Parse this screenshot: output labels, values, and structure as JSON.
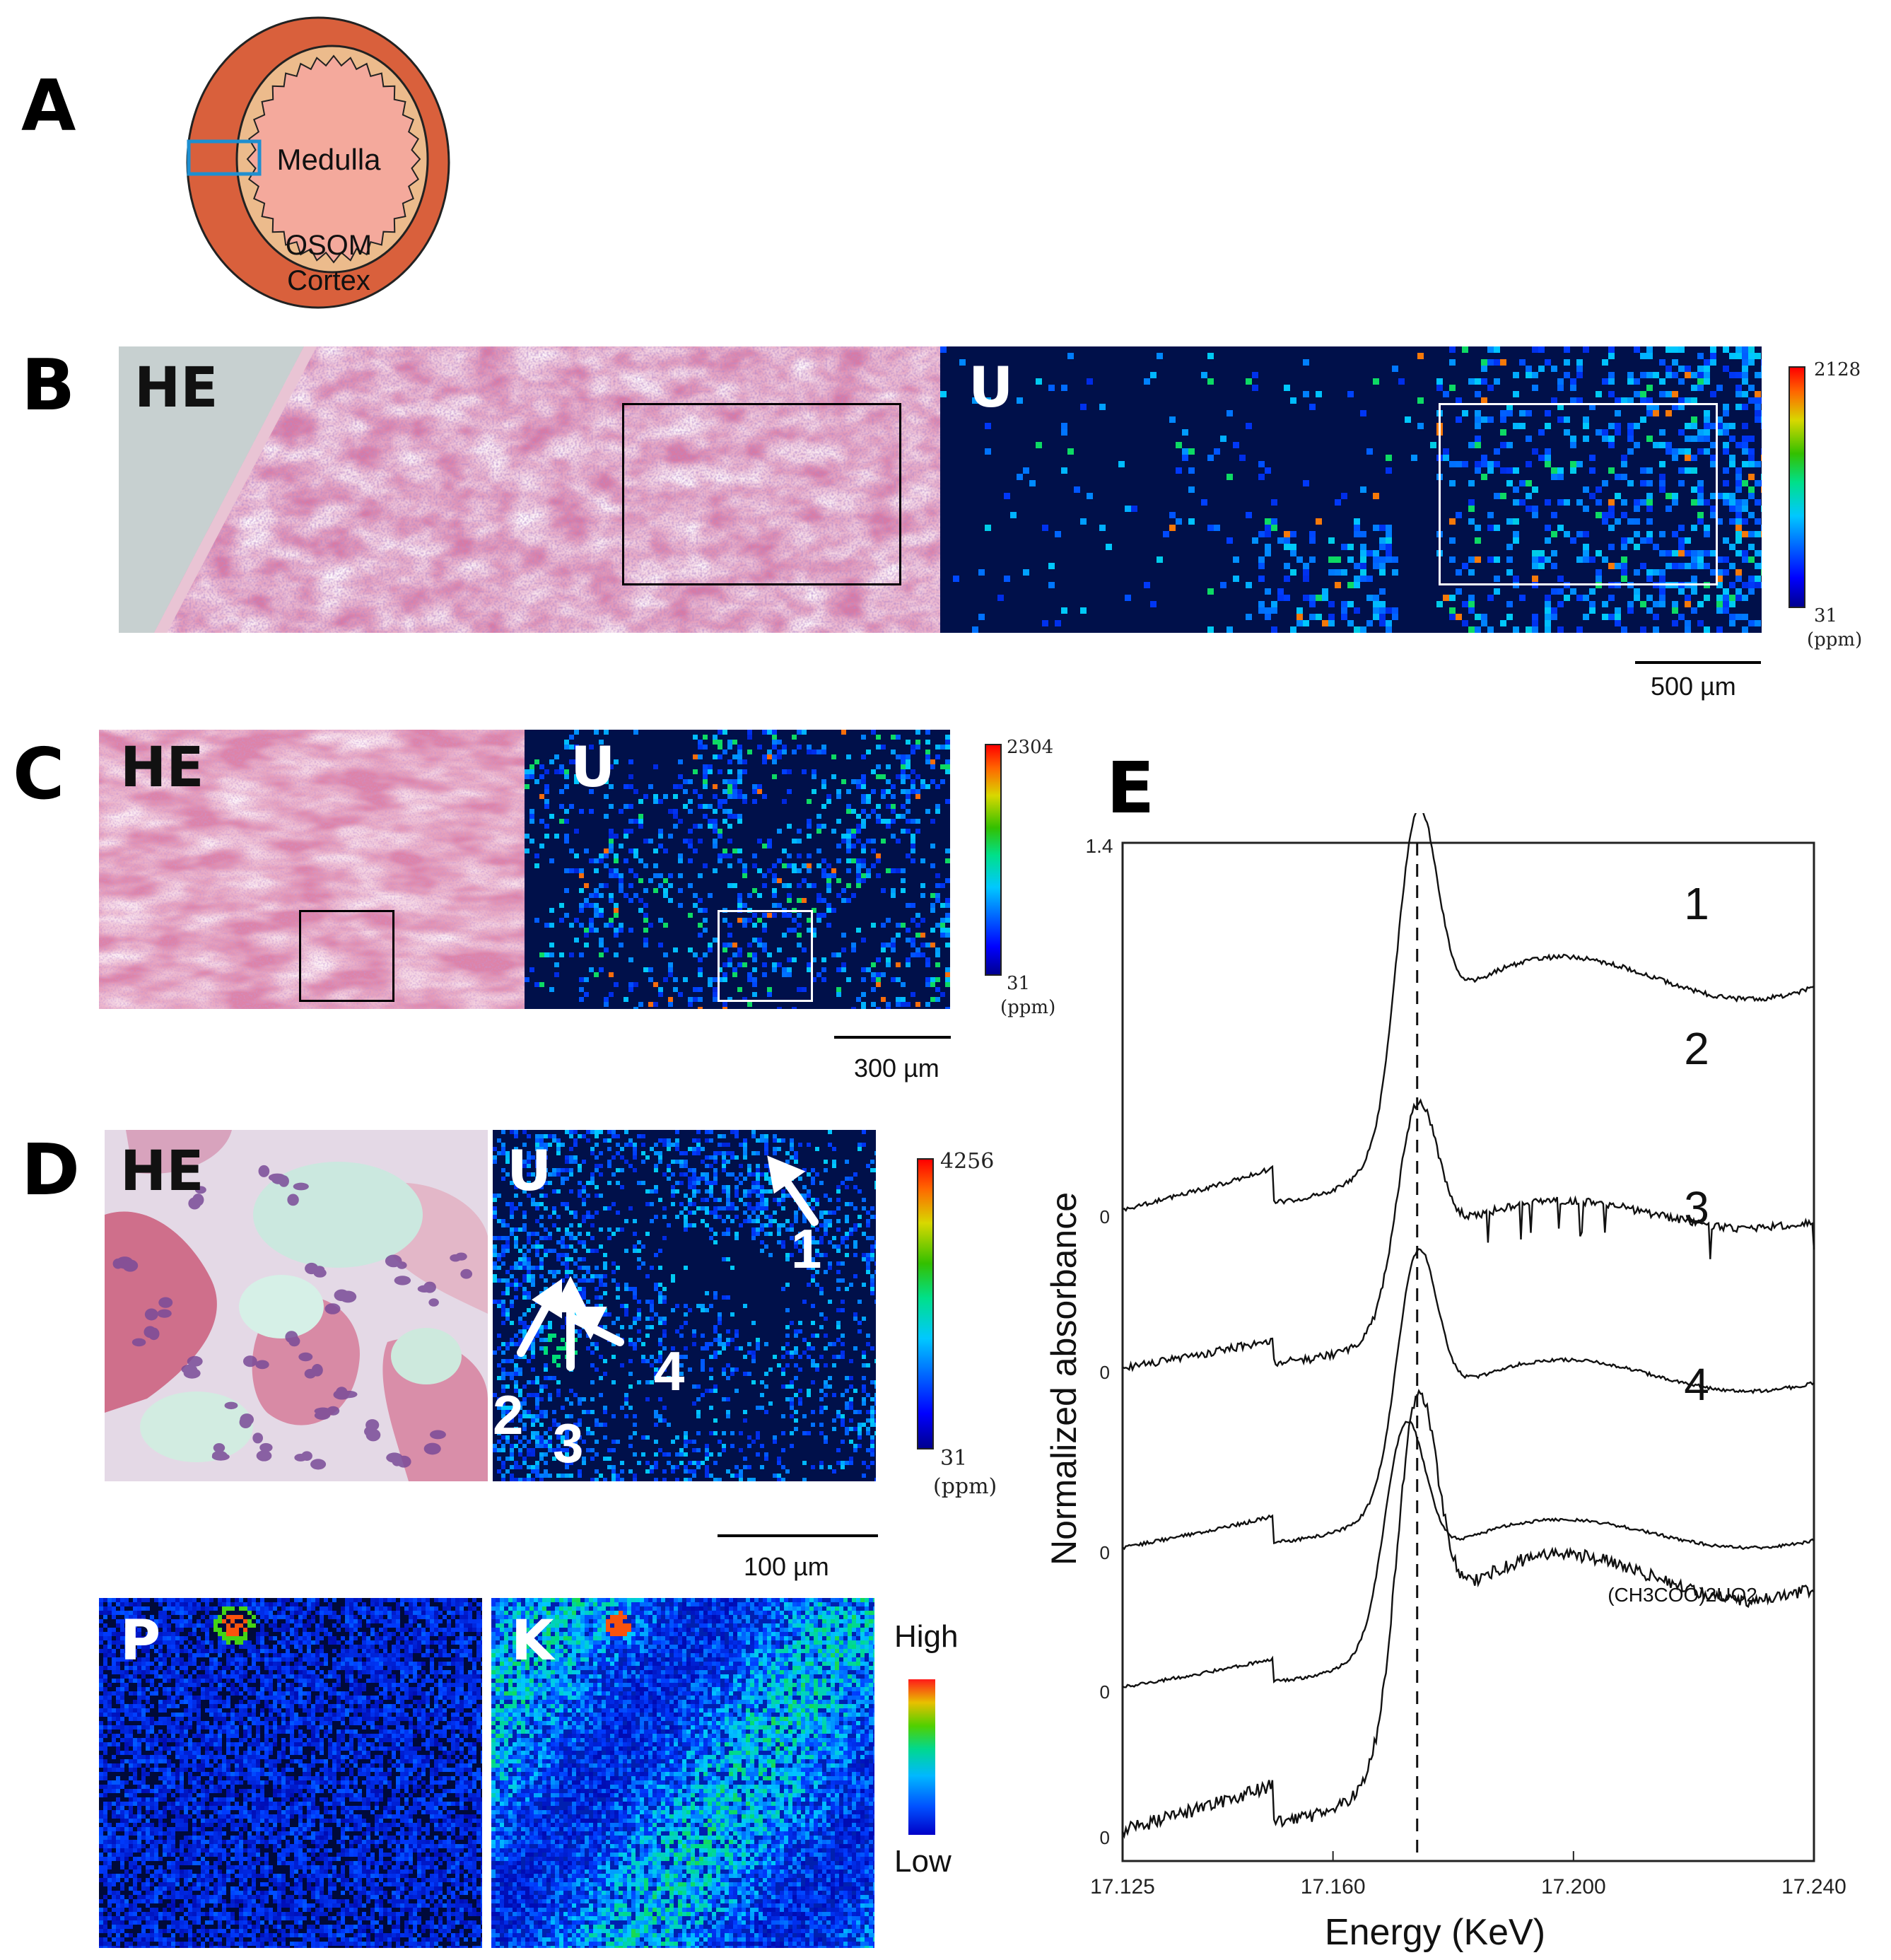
{
  "panels": {
    "A": {
      "letter": "A",
      "labels": {
        "medulla": "Medulla",
        "osom": "OSOM",
        "cortex": "Cortex"
      }
    },
    "B": {
      "letter": "B",
      "he_label": "HE",
      "map_label": "U",
      "colorbar": {
        "max": "2128",
        "min": "31",
        "unit": "(ppm)"
      },
      "scale": "500 µm"
    },
    "C": {
      "letter": "C",
      "he_label": "HE",
      "map_label": "U",
      "colorbar": {
        "max": "2304",
        "min": "31",
        "unit": "(ppm)"
      },
      "scale": "300 µm"
    },
    "D": {
      "letter": "D",
      "he_label": "HE",
      "map_label": "U",
      "colorbar": {
        "max": "4256",
        "min": "31",
        "unit": "(ppm)"
      },
      "scale": "100 µm",
      "arrows": [
        "1",
        "2",
        "3",
        "4"
      ],
      "p_label": "P",
      "k_label": "K",
      "pk_colorbar": {
        "high": "High",
        "low": "Low"
      }
    },
    "E": {
      "letter": "E"
    }
  },
  "chart_data": {
    "type": "line",
    "xlabel": "Energy (KeV)",
    "ylabel": "Normalized absorbance",
    "xlim": [
      17.125,
      17.24
    ],
    "x_ticks": [
      "17.125",
      "17.160",
      "17.200",
      "17.240"
    ],
    "y_tick_top": "1.4",
    "offset_zero_labels": [
      "0",
      "0",
      "0",
      "0",
      "0"
    ],
    "reference_line_x": 17.174,
    "series": [
      {
        "name": "1",
        "offset": 0.0
      },
      {
        "name": "2",
        "offset": 0.0
      },
      {
        "name": "3",
        "offset": 0.0
      },
      {
        "name": "4",
        "offset": 0.0
      },
      {
        "name": "(CH3COO)2UO2",
        "offset": 0.0
      }
    ],
    "series_labels": [
      "1",
      "2",
      "3",
      "4",
      "(CH3COO)2UO2"
    ]
  }
}
